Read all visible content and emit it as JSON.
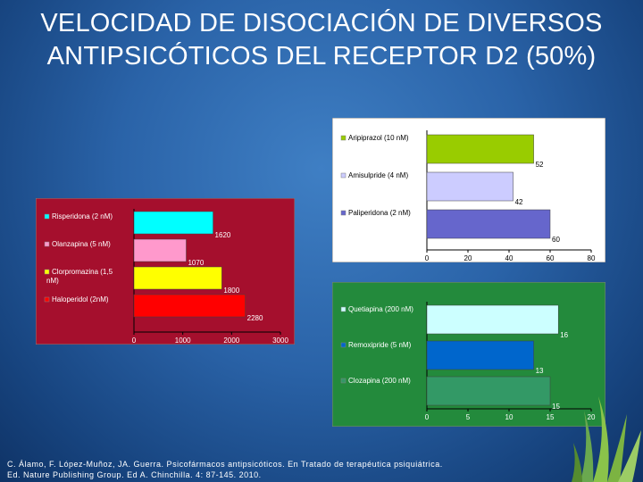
{
  "title_line1": "VELOCIDAD DE DISOCIACIÓN DE DIVERSOS",
  "title_line2": "ANTIPSICÓTICOS DEL RECEPTOR D2 (50%)",
  "citation_line1": "C. Álamo, F. López-Muñoz, JA. Guerra. Psicofármacos antipsicóticos. En Tratado de terapéutica psiquiátrica.",
  "citation_line2": "Ed. Nature Publishing Group. Ed A. Chinchilla. 4: 87-145. 2010.",
  "colors": {
    "panel_red": "#a50f2d",
    "panel_white": "#ffffff",
    "panel_green": "#238a3c",
    "bar_green": "#99cc00",
    "bar_lavender": "#ccccff",
    "bar_periwinkle": "#6666cc",
    "bar_cyan": "#00ffff",
    "bar_pink": "#ff99cc",
    "bar_yellow": "#ffff00",
    "bar_red": "#ff0000",
    "bar_lightcyan": "#ccffff",
    "bar_blue": "#0066cc",
    "bar_teal": "#339966"
  },
  "chart_data": [
    {
      "id": "top",
      "type": "bar",
      "orientation": "horizontal",
      "categories": [
        "Aripiprazol (10 nM)",
        "Amisulpride (4 nM)",
        "Paliperidona (2 nM)"
      ],
      "values": [
        52,
        42,
        60
      ],
      "colors": [
        "#99cc00",
        "#ccccff",
        "#6666cc"
      ],
      "xlim": [
        0,
        80
      ],
      "ticks": [
        0,
        20,
        40,
        60,
        80
      ],
      "background": "#ffffff",
      "legend": "left"
    },
    {
      "id": "left",
      "type": "bar",
      "orientation": "horizontal",
      "categories": [
        "Risperidona (2 nM)",
        "Olanzapina (5 nM)",
        "Clorpromazina (1,5 nM)",
        "Haloperidol (2nM)"
      ],
      "values": [
        1620,
        1070,
        1800,
        2280
      ],
      "colors": [
        "#00ffff",
        "#ff99cc",
        "#ffff00",
        "#ff0000"
      ],
      "xlim": [
        0,
        3000
      ],
      "ticks": [
        0,
        1000,
        2000,
        3000
      ],
      "background": "#a50f2d",
      "legend": "left"
    },
    {
      "id": "bottom",
      "type": "bar",
      "orientation": "horizontal",
      "categories": [
        "Quetiapina (200 nM)",
        "Remoxipride (5 nM)",
        "Clozapina (200 nM)"
      ],
      "values": [
        16,
        13,
        15
      ],
      "colors": [
        "#ccffff",
        "#0066cc",
        "#339966"
      ],
      "xlim": [
        0,
        20
      ],
      "ticks": [
        0,
        5,
        10,
        15,
        20
      ],
      "background": "#238a3c",
      "legend": "left"
    }
  ]
}
